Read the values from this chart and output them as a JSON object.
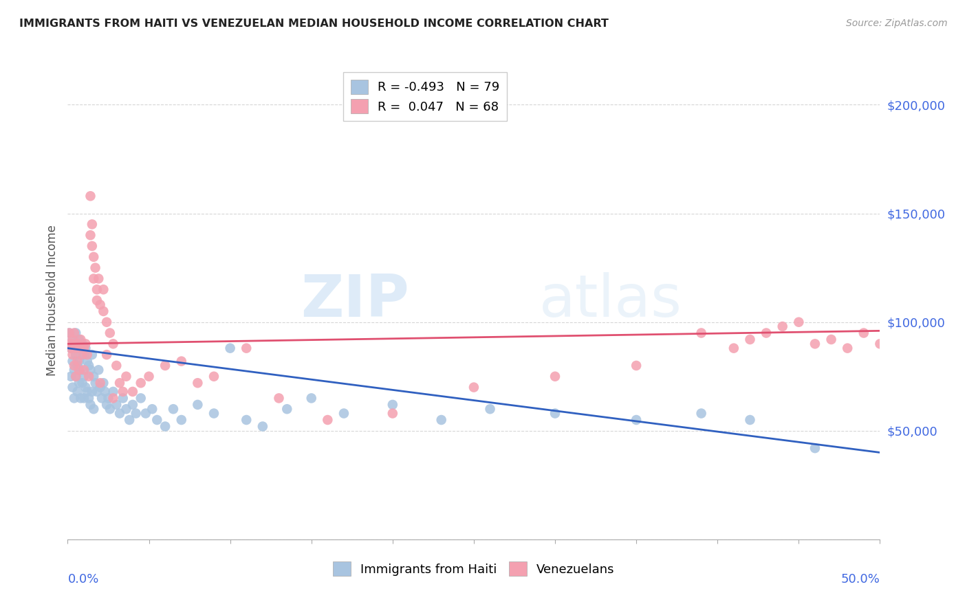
{
  "title": "IMMIGRANTS FROM HAITI VS VENEZUELAN MEDIAN HOUSEHOLD INCOME CORRELATION CHART",
  "source": "Source: ZipAtlas.com",
  "ylabel": "Median Household Income",
  "yticks": [
    0,
    50000,
    100000,
    150000,
    200000
  ],
  "ytick_labels": [
    "",
    "$50,000",
    "$100,000",
    "$150,000",
    "$200,000"
  ],
  "ylim": [
    0,
    220000
  ],
  "xlim": [
    0.0,
    0.5
  ],
  "legend_haiti_r": "-0.493",
  "legend_haiti_n": "79",
  "legend_venezuela_r": "0.047",
  "legend_venezuela_n": "68",
  "haiti_color": "#a8c4e0",
  "venezuela_color": "#f4a0b0",
  "haiti_line_color": "#3060c0",
  "venezuela_line_color": "#e05070",
  "watermark_zip": "ZIP",
  "watermark_atlas": "atlas",
  "haiti_line_x0": 0.0,
  "haiti_line_y0": 88000,
  "haiti_line_x1": 0.5,
  "haiti_line_y1": 40000,
  "ven_line_x0": 0.0,
  "ven_line_y0": 90000,
  "ven_line_x1": 0.5,
  "ven_line_y1": 96000,
  "haiti_scatter_x": [
    0.001,
    0.002,
    0.002,
    0.003,
    0.003,
    0.003,
    0.004,
    0.004,
    0.004,
    0.005,
    0.005,
    0.005,
    0.006,
    0.006,
    0.006,
    0.007,
    0.007,
    0.007,
    0.008,
    0.008,
    0.008,
    0.009,
    0.009,
    0.01,
    0.01,
    0.01,
    0.011,
    0.011,
    0.012,
    0.012,
    0.013,
    0.013,
    0.014,
    0.014,
    0.015,
    0.015,
    0.016,
    0.016,
    0.017,
    0.018,
    0.019,
    0.02,
    0.021,
    0.022,
    0.023,
    0.024,
    0.025,
    0.026,
    0.028,
    0.03,
    0.032,
    0.034,
    0.036,
    0.038,
    0.04,
    0.042,
    0.045,
    0.048,
    0.052,
    0.055,
    0.06,
    0.065,
    0.07,
    0.08,
    0.09,
    0.1,
    0.11,
    0.12,
    0.135,
    0.15,
    0.17,
    0.2,
    0.23,
    0.26,
    0.3,
    0.35,
    0.39,
    0.42,
    0.46
  ],
  "haiti_scatter_y": [
    95000,
    88000,
    75000,
    92000,
    82000,
    70000,
    90000,
    78000,
    65000,
    95000,
    85000,
    75000,
    88000,
    80000,
    68000,
    92000,
    82000,
    72000,
    88000,
    78000,
    65000,
    90000,
    72000,
    85000,
    75000,
    65000,
    88000,
    70000,
    82000,
    68000,
    80000,
    65000,
    78000,
    62000,
    85000,
    68000,
    75000,
    60000,
    72000,
    68000,
    78000,
    70000,
    65000,
    72000,
    68000,
    62000,
    65000,
    60000,
    68000,
    62000,
    58000,
    65000,
    60000,
    55000,
    62000,
    58000,
    65000,
    58000,
    60000,
    55000,
    52000,
    60000,
    55000,
    62000,
    58000,
    88000,
    55000,
    52000,
    60000,
    65000,
    58000,
    62000,
    55000,
    60000,
    58000,
    55000,
    58000,
    55000,
    42000
  ],
  "venezuela_scatter_x": [
    0.001,
    0.002,
    0.002,
    0.003,
    0.003,
    0.004,
    0.004,
    0.005,
    0.005,
    0.006,
    0.006,
    0.007,
    0.007,
    0.008,
    0.009,
    0.01,
    0.01,
    0.011,
    0.012,
    0.013,
    0.014,
    0.015,
    0.016,
    0.017,
    0.018,
    0.019,
    0.02,
    0.022,
    0.024,
    0.026,
    0.028,
    0.03,
    0.032,
    0.034,
    0.036,
    0.04,
    0.045,
    0.05,
    0.06,
    0.07,
    0.08,
    0.09,
    0.11,
    0.13,
    0.16,
    0.2,
    0.25,
    0.3,
    0.35,
    0.39,
    0.41,
    0.42,
    0.43,
    0.44,
    0.45,
    0.46,
    0.47,
    0.48,
    0.49,
    0.5,
    0.014,
    0.015,
    0.016,
    0.018,
    0.02,
    0.022,
    0.024,
    0.028
  ],
  "venezuela_scatter_y": [
    95000,
    90000,
    88000,
    92000,
    85000,
    95000,
    80000,
    88000,
    75000,
    90000,
    82000,
    88000,
    78000,
    92000,
    85000,
    88000,
    78000,
    90000,
    85000,
    75000,
    140000,
    145000,
    130000,
    125000,
    115000,
    120000,
    108000,
    115000,
    100000,
    95000,
    90000,
    80000,
    72000,
    68000,
    75000,
    68000,
    72000,
    75000,
    80000,
    82000,
    72000,
    75000,
    88000,
    65000,
    55000,
    58000,
    70000,
    75000,
    80000,
    95000,
    88000,
    92000,
    95000,
    98000,
    100000,
    90000,
    92000,
    88000,
    95000,
    90000,
    158000,
    135000,
    120000,
    110000,
    72000,
    105000,
    85000,
    65000
  ]
}
